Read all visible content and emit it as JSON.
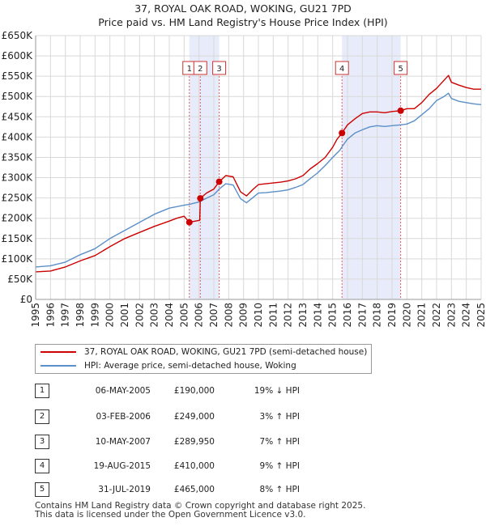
{
  "title_line1": "37, ROYAL OAK ROAD, WOKING, GU21 7PD",
  "title_line2": "Price paid vs. HM Land Registry's House Price Index (HPI)",
  "colors": {
    "property": "#cc0000",
    "hpi": "#5b8fc9",
    "shade": "#e8ecfa",
    "marker_line": "#e06060"
  },
  "legend": {
    "property_label": "37, ROYAL OAK ROAD, WOKING, GU21 7PD (semi-detached house)",
    "hpi_label": "HPI: Average price, semi-detached house, Woking"
  },
  "sales": [
    {
      "num": "1",
      "date": "06-MAY-2005",
      "price": "£190,000",
      "hpi": "19% ↓ HPI"
    },
    {
      "num": "2",
      "date": "03-FEB-2006",
      "price": "£249,000",
      "hpi": "3% ↑ HPI"
    },
    {
      "num": "3",
      "date": "10-MAY-2007",
      "price": "£289,950",
      "hpi": "7% ↑ HPI"
    },
    {
      "num": "4",
      "date": "19-AUG-2015",
      "price": "£410,000",
      "hpi": "9% ↑ HPI"
    },
    {
      "num": "5",
      "date": "31-JUL-2019",
      "price": "£465,000",
      "hpi": "8% ↑ HPI"
    }
  ],
  "footer": {
    "line1": "Contains HM Land Registry data © Crown copyright and database right 2025.",
    "line2": "This data is licensed under the Open Government Licence v3.0."
  },
  "chart_data": {
    "type": "line",
    "xlim": [
      1995,
      2025
    ],
    "ylim": [
      0,
      650000
    ],
    "x_ticks": [
      "1995",
      "1996",
      "1997",
      "1998",
      "1999",
      "2000",
      "2001",
      "2002",
      "2003",
      "2004",
      "2005",
      "2006",
      "2007",
      "2008",
      "2009",
      "2010",
      "2011",
      "2012",
      "2013",
      "2014",
      "2015",
      "2016",
      "2017",
      "2018",
      "2019",
      "2020",
      "2021",
      "2022",
      "2023",
      "2024",
      "2025"
    ],
    "y_ticks": [
      {
        "value": 0,
        "label": "£0"
      },
      {
        "value": 50000,
        "label": "£50K"
      },
      {
        "value": 100000,
        "label": "£100K"
      },
      {
        "value": 150000,
        "label": "£150K"
      },
      {
        "value": 200000,
        "label": "£200K"
      },
      {
        "value": 250000,
        "label": "£250K"
      },
      {
        "value": 300000,
        "label": "£300K"
      },
      {
        "value": 350000,
        "label": "£350K"
      },
      {
        "value": 400000,
        "label": "£400K"
      },
      {
        "value": 450000,
        "label": "£450K"
      },
      {
        "value": 500000,
        "label": "£500K"
      },
      {
        "value": 550000,
        "label": "£550K"
      },
      {
        "value": 600000,
        "label": "£600K"
      },
      {
        "value": 650000,
        "label": "£650K"
      }
    ],
    "shaded_ranges": [
      [
        2005.35,
        2007.36
      ],
      [
        2015.63,
        2019.58
      ]
    ],
    "sale_points": [
      {
        "label": "1",
        "x": 2005.35,
        "y": 190000
      },
      {
        "label": "2",
        "x": 2006.09,
        "y": 249000
      },
      {
        "label": "3",
        "x": 2007.36,
        "y": 289950
      },
      {
        "label": "4",
        "x": 2015.63,
        "y": 410000
      },
      {
        "label": "5",
        "x": 2019.58,
        "y": 465000
      }
    ],
    "series": [
      {
        "name": "37, ROYAL OAK ROAD, WOKING, GU21 7PD (semi-detached house)",
        "x": [
          1995.0,
          1996.0,
          1997.0,
          1998.0,
          1999.0,
          2000.0,
          2001.0,
          2002.0,
          2003.0,
          2004.0,
          2004.5,
          2005.0,
          2005.35,
          2006.05,
          2006.09,
          2006.5,
          2007.0,
          2007.36,
          2007.8,
          2008.3,
          2008.8,
          2009.2,
          2009.6,
          2010.0,
          2010.5,
          2011.0,
          2011.5,
          2012.0,
          2012.5,
          2013.0,
          2013.5,
          2014.0,
          2014.5,
          2015.0,
          2015.3,
          2015.63,
          2016.0,
          2016.5,
          2017.0,
          2017.5,
          2018.0,
          2018.5,
          2019.0,
          2019.58,
          2020.0,
          2020.5,
          2021.0,
          2021.5,
          2022.0,
          2022.5,
          2022.8,
          2023.0,
          2023.5,
          2024.0,
          2024.5,
          2025.0
        ],
        "values": [
          68000,
          70000,
          80000,
          95000,
          108000,
          130000,
          150000,
          165000,
          180000,
          193000,
          200000,
          205000,
          190000,
          195000,
          249000,
          262000,
          272000,
          289950,
          305000,
          302000,
          265000,
          255000,
          270000,
          283000,
          285000,
          287000,
          289000,
          292000,
          297000,
          305000,
          322000,
          335000,
          350000,
          375000,
          395000,
          410000,
          430000,
          445000,
          458000,
          462000,
          462000,
          460000,
          463000,
          465000,
          470000,
          470000,
          485000,
          505000,
          520000,
          540000,
          552000,
          535000,
          528000,
          522000,
          518000,
          518000
        ]
      },
      {
        "name": "HPI: Average price, semi-detached house, Woking",
        "x": [
          1995.0,
          1996.0,
          1997.0,
          1998.0,
          1999.0,
          2000.0,
          2001.0,
          2002.0,
          2003.0,
          2004.0,
          2005.0,
          2005.35,
          2006.0,
          2006.09,
          2007.0,
          2007.36,
          2007.8,
          2008.3,
          2008.8,
          2009.2,
          2009.6,
          2010.0,
          2010.5,
          2011.0,
          2011.5,
          2012.0,
          2012.5,
          2013.0,
          2013.5,
          2014.0,
          2014.5,
          2015.0,
          2015.5,
          2015.63,
          2016.0,
          2016.5,
          2017.0,
          2017.5,
          2018.0,
          2018.5,
          2019.0,
          2019.58,
          2020.0,
          2020.5,
          2021.0,
          2021.5,
          2022.0,
          2022.5,
          2022.8,
          2023.0,
          2023.5,
          2024.0,
          2024.5,
          2025.0
        ],
        "values": [
          80000,
          83000,
          92000,
          110000,
          125000,
          150000,
          170000,
          190000,
          210000,
          225000,
          232000,
          234000,
          240000,
          242000,
          258000,
          272000,
          285000,
          282000,
          248000,
          238000,
          250000,
          262000,
          263000,
          265000,
          267000,
          270000,
          276000,
          283000,
          298000,
          312000,
          330000,
          350000,
          368000,
          376000,
          395000,
          410000,
          418000,
          425000,
          428000,
          426000,
          428000,
          430000,
          432000,
          440000,
          455000,
          470000,
          490000,
          500000,
          508000,
          495000,
          488000,
          485000,
          482000,
          480000
        ]
      }
    ]
  }
}
